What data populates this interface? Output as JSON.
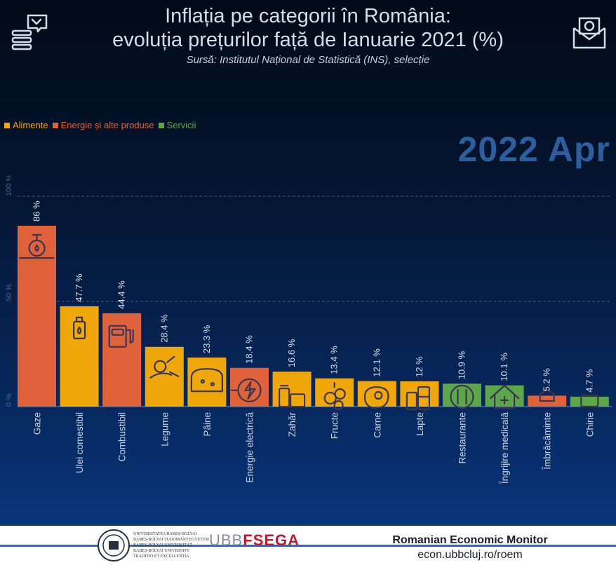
{
  "header": {
    "title_line1": "Inflația pe categorii în România:",
    "title_line2": "evoluția prețurilor față de Ianuarie 2021 (%)",
    "source": "Sursă:  Institutul Național de Statistică (INS), selecție",
    "period": "2022 Apr"
  },
  "legend": [
    {
      "label": "Alimente",
      "color": "#f0a70a"
    },
    {
      "label": "Energie și alte produse",
      "color": "#e0623a"
    },
    {
      "label": "Servicii",
      "color": "#5da64a"
    }
  ],
  "chart_data": {
    "type": "bar",
    "title": "Inflația pe categorii în România: evoluția prețurilor față de Ianuarie 2021 (%)",
    "ylim": [
      0,
      100
    ],
    "yticks": [
      "0 %",
      "50 %",
      "100 %"
    ],
    "grid": true,
    "legend_position": "top-left",
    "categories": [
      "Gaze",
      "Ulei comestibil",
      "Combustibil",
      "Legume",
      "Pâine",
      "Energie electrică",
      "Zahăr",
      "Fructe",
      "Carne",
      "Lapte",
      "Restaurante",
      "Îngrijire medicală",
      "Îmbrăcăminte",
      "Chirie"
    ],
    "values": [
      86,
      47.7,
      44.4,
      28.4,
      23.3,
      18.4,
      16.6,
      13.4,
      12.1,
      12,
      10.9,
      10.1,
      5.2,
      4.7
    ],
    "value_labels": [
      "86 %",
      "47.7 %",
      "44.4 %",
      "28.4 %",
      "23.3 %",
      "18.4 %",
      "16.6 %",
      "13.4 %",
      "12.1 %",
      "12 %",
      "10.9 %",
      "10.1 %",
      "5.2 %",
      "4.7 %"
    ],
    "groups": [
      "Energie și alte produse",
      "Alimente",
      "Energie și alte produse",
      "Alimente",
      "Alimente",
      "Energie și alte produse",
      "Alimente",
      "Alimente",
      "Alimente",
      "Alimente",
      "Servicii",
      "Servicii",
      "Energie și alte produse",
      "Servicii"
    ],
    "icons": [
      "gas-valve-icon",
      "oil-bottle-icon",
      "fuel-pump-icon",
      "vegetables-icon",
      "bread-icon",
      "electric-plug-icon",
      "sugar-icon",
      "fruits-icon",
      "meat-icon",
      "milk-icon",
      "restaurant-icon",
      "medical-house-icon",
      "clothes-icon",
      "rent-icon"
    ]
  },
  "footer": {
    "university": [
      "UNIVERSITATEA BABEȘ-BOLYAI",
      "BABEȘ-BOLYAI TUDOMÁNYEGYETEM",
      "BABEȘ-BOLYAI UNIVERSITÄT",
      "BABEȘ-BOLYAI UNIVERSITY",
      "TRADITIO ET EXCELLENTIA"
    ],
    "ubb": "UBB",
    "fsega": "FSEGA",
    "monitor": "Romanian Economic Monitor",
    "url": "econ.ubbcluj.ro/roem"
  }
}
